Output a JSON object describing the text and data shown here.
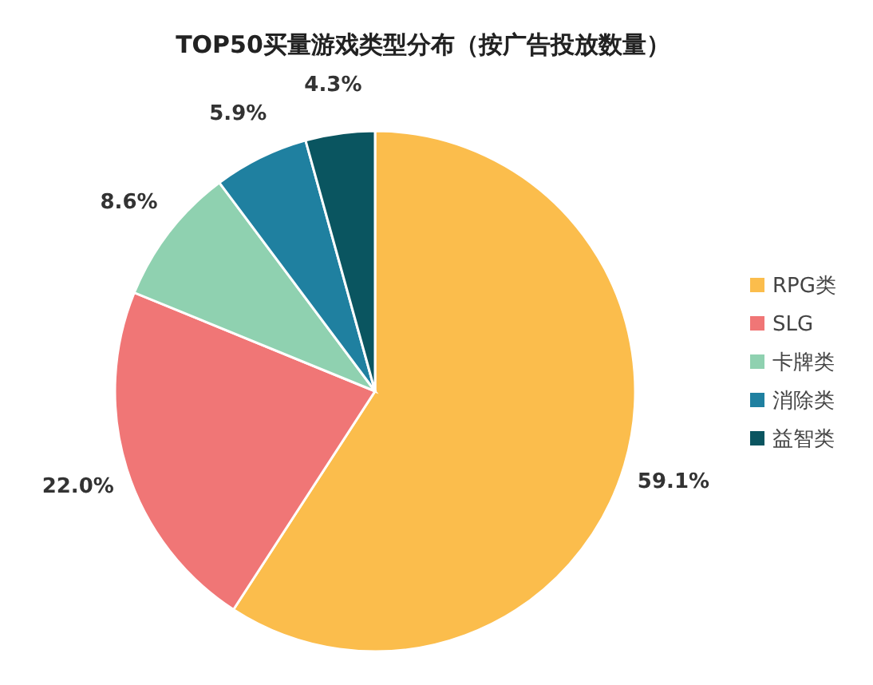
{
  "chart_data": {
    "type": "pie",
    "title": "TOP50买量游戏类型分布（按广告投放数量）",
    "categories": [
      "RPG类",
      "SLG",
      "卡牌类",
      "消除类",
      "益智类"
    ],
    "values": [
      59.1,
      22.0,
      8.6,
      5.9,
      4.3
    ],
    "colors": [
      "#fbbd4c",
      "#f07676",
      "#8fd1b0",
      "#1f80a0",
      "#0a5560"
    ],
    "value_labels": [
      "59.1%",
      "22.0%",
      "8.6%",
      "5.9%",
      "4.3%"
    ],
    "legend": "right"
  }
}
